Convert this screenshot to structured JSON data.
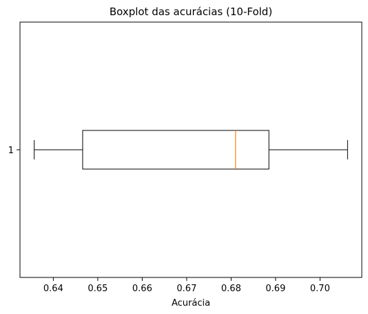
{
  "chart_data": {
    "type": "boxplot",
    "orientation": "horizontal",
    "title": "Boxplot das acurácias (10-Fold)",
    "xlabel": "Acurácia",
    "ylabel": "",
    "xlim": [
      0.6325,
      0.7094
    ],
    "x_ticks": [
      "0.64",
      "0.65",
      "0.66",
      "0.67",
      "0.68",
      "0.69",
      "0.70"
    ],
    "y_ticks": [
      "1"
    ],
    "grid": false,
    "boxes": [
      {
        "position": "1",
        "whisker_low": 0.6357,
        "q1": 0.6466,
        "median": 0.681,
        "q3": 0.6885,
        "whisker_high": 0.7062
      }
    ],
    "colors": {
      "box": "#000000",
      "median": "#ff7f0e",
      "whisker": "#000000"
    }
  }
}
